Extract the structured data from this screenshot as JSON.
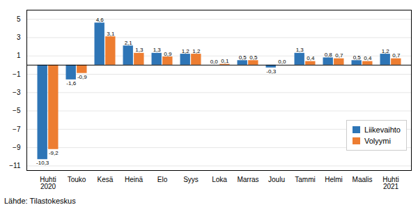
{
  "chart_data": {
    "type": "bar",
    "categories": [
      "Huhti\n2020",
      "Touko",
      "Kesä",
      "Heinä",
      "Elo",
      "Syys",
      "Loka",
      "Marras",
      "Joulu",
      "Tammi",
      "Helmi",
      "Maalis",
      "Huhti\n2021"
    ],
    "series": [
      {
        "name": "Liikevaihto",
        "color": "#2E75B6",
        "values": [
          -10.3,
          -1.6,
          4.6,
          2.1,
          1.3,
          1.2,
          0.0,
          0.5,
          -0.3,
          1.3,
          0.8,
          0.5,
          1.2
        ],
        "value_labels": [
          "-10,3",
          "-1,6",
          "4,6",
          "2,1",
          "1,3",
          "1,2",
          "0,0",
          "0,5",
          "-0,3",
          "1,3",
          "0,8",
          "0,5",
          "1,2"
        ]
      },
      {
        "name": "Volyymi",
        "color": "#ED7D31",
        "values": [
          -9.2,
          -0.9,
          3.1,
          1.3,
          0.9,
          1.2,
          0.1,
          0.5,
          0.0,
          0.4,
          0.7,
          0.4,
          0.7
        ],
        "value_labels": [
          "-9,2",
          "-0,9",
          "3,1",
          "1,3",
          "0,9",
          "1,2",
          "0,1",
          "0,5",
          "0,0",
          "0,4",
          "0,7",
          "0,4",
          "0,7"
        ]
      }
    ],
    "ylim": [
      -11.5,
      6.0
    ],
    "yticks": [
      -11,
      -9,
      -7,
      -5,
      -3,
      -1,
      1,
      3,
      5
    ],
    "grid": true,
    "legend": "lower right",
    "data_labels": true,
    "annotations": [
      "Lähde: Tilastokeskus"
    ]
  }
}
